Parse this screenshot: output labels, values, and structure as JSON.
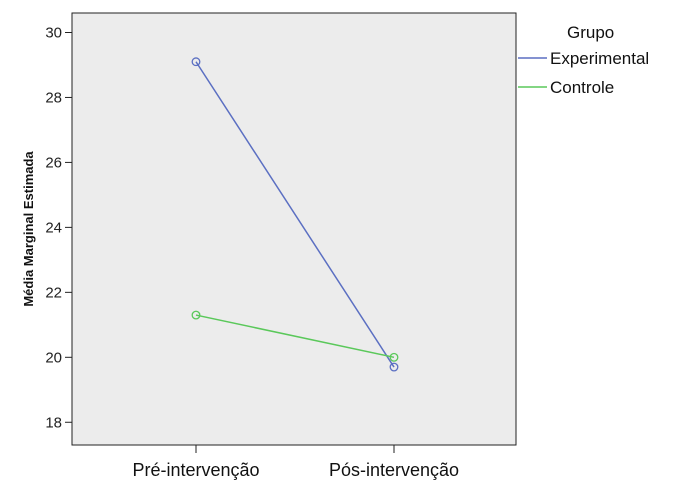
{
  "chart_data": {
    "type": "line",
    "title": "",
    "xlabel": "",
    "ylabel": "Média Marginal Estimada",
    "categories": [
      "Pré-intervenção",
      "Pós-intervenção"
    ],
    "ylim": [
      17.3,
      30.6
    ],
    "yticks": [
      18,
      20,
      22,
      24,
      26,
      28,
      30
    ],
    "grid": false,
    "legend": {
      "title": "Grupo",
      "placement": "right"
    },
    "series": [
      {
        "name": "Experimental",
        "values": [
          29.1,
          19.7
        ],
        "color": "#5b6fc2"
      },
      {
        "name": "Controle",
        "values": [
          21.3,
          20.0
        ],
        "color": "#5ac85a"
      }
    ],
    "plot_background": "#ececec"
  }
}
